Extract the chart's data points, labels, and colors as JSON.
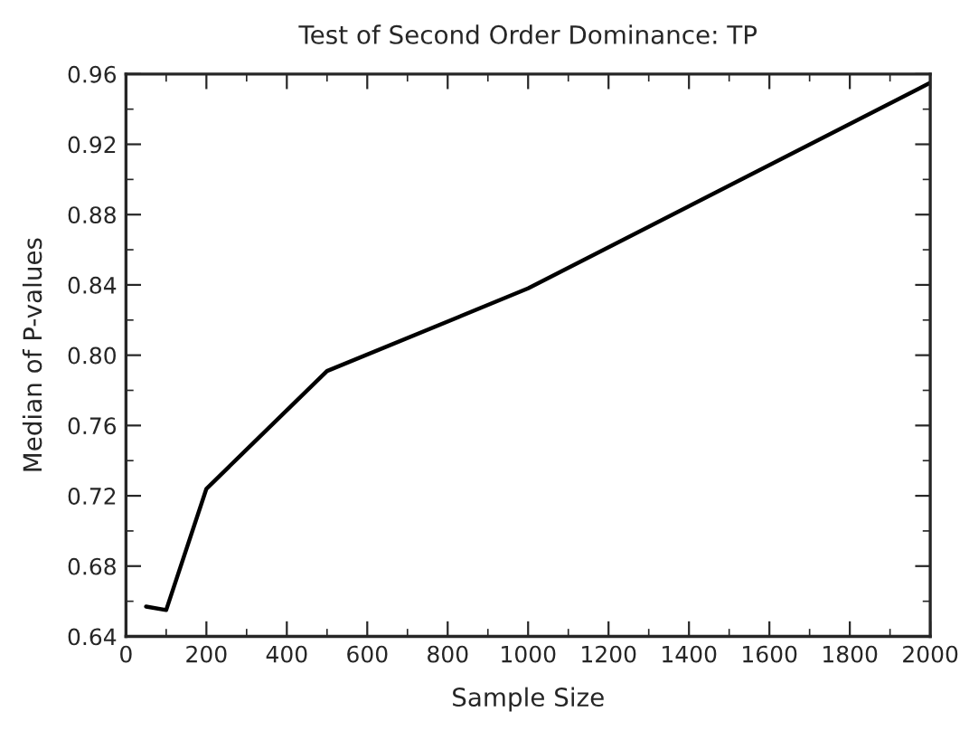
{
  "chart_data": {
    "type": "line",
    "title": "Test of Second Order Dominance: TP",
    "xlabel": "Sample Size",
    "ylabel": "Median of P-values",
    "x": [
      50,
      100,
      200,
      500,
      1000,
      2000
    ],
    "series": [
      {
        "color": "#000000",
        "values": [
          0.657,
          0.655,
          0.724,
          0.791,
          0.838,
          0.955
        ]
      }
    ],
    "xlim": [
      0,
      2000
    ],
    "xticks": [
      0,
      200,
      400,
      600,
      800,
      1000,
      1200,
      1400,
      1600,
      1800,
      2000
    ],
    "ylim": [
      0.64,
      0.96
    ],
    "yticks": [
      {
        "value": 0.64,
        "label": "0.64"
      },
      {
        "value": 0.68,
        "label": "0.68"
      },
      {
        "value": 0.72,
        "label": "0.72"
      },
      {
        "value": 0.76,
        "label": "0.76"
      },
      {
        "value": 0.8,
        "label": "0.80"
      },
      {
        "value": 0.84,
        "label": "0.84"
      },
      {
        "value": 0.88,
        "label": "0.88"
      },
      {
        "value": 0.92,
        "label": "0.92"
      },
      {
        "value": 0.96,
        "label": "0.96"
      }
    ],
    "grid": false,
    "marker": "none",
    "line_style": "solid"
  }
}
